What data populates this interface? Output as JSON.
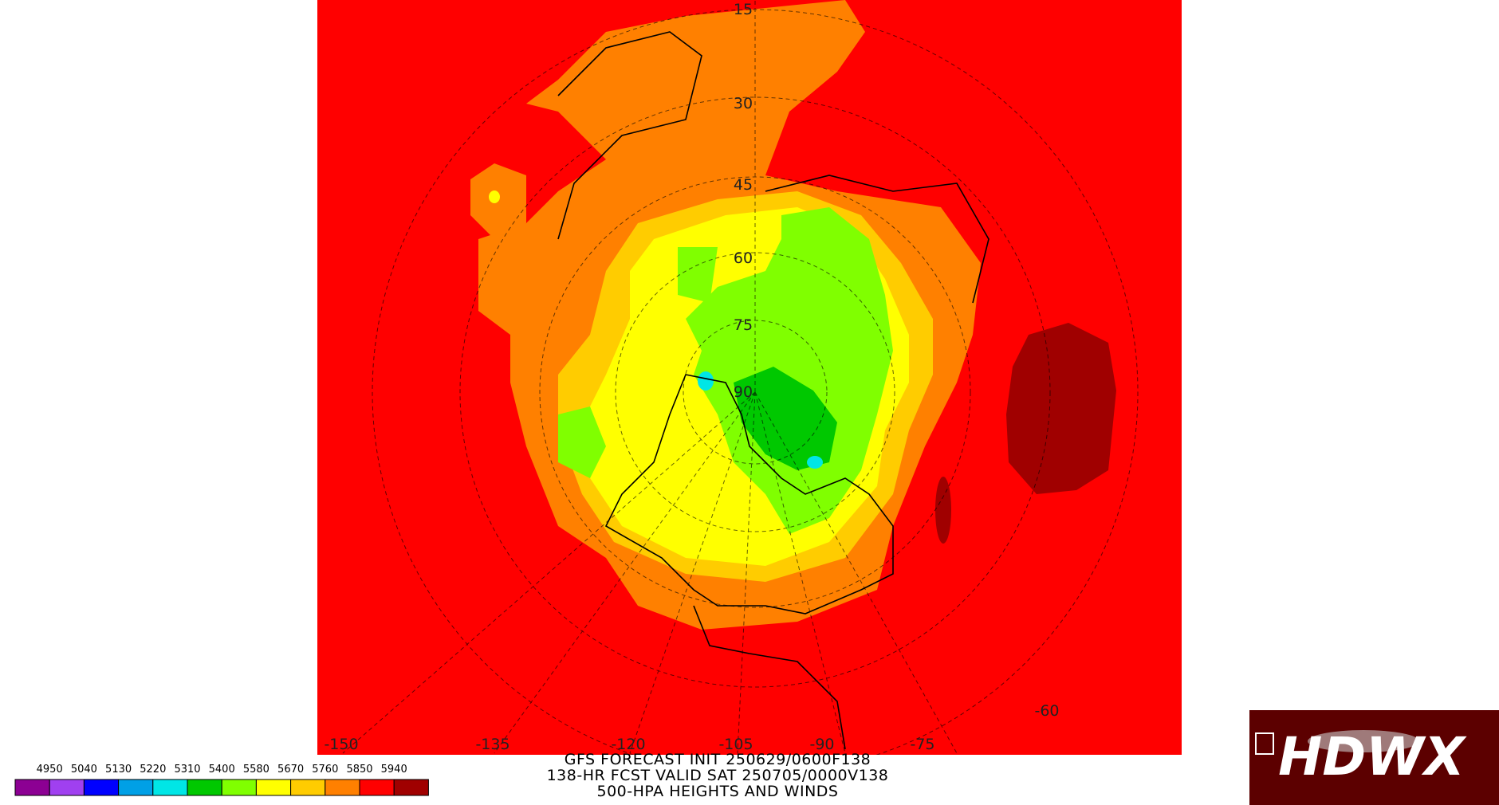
{
  "title_lines": [
    "GFS FORECAST INIT 250629/0600F138",
    "138-HR FCST VALID SAT 250705/0000V138",
    "500-HPA HEIGHTS AND WINDS"
  ],
  "colorbar": {
    "levels": [
      4950,
      5040,
      5130,
      5220,
      5310,
      5400,
      5580,
      5670,
      5760,
      5850,
      5940
    ],
    "colors": [
      "#8c0093",
      "#a040f0",
      "#0000ff",
      "#00a0e6",
      "#00e6e6",
      "#00c800",
      "#80ff00",
      "#ffff00",
      "#ffcc00",
      "#ff8000",
      "#ff0000",
      "#a00000"
    ]
  },
  "longitude_labels": [
    -150,
    -135,
    -120,
    -105,
    -90,
    -75,
    -60
  ],
  "latitude_labels": [
    15,
    30,
    45,
    60,
    75,
    90
  ],
  "logo": "HDWX"
}
